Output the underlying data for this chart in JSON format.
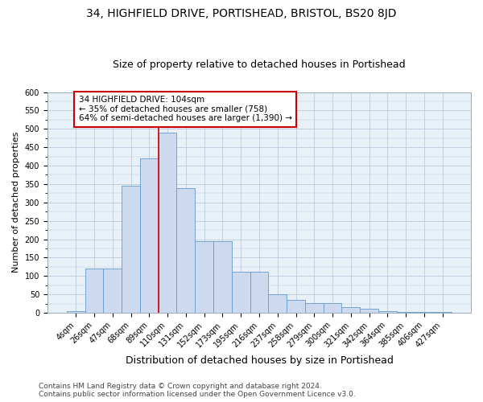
{
  "title": "34, HIGHFIELD DRIVE, PORTISHEAD, BRISTOL, BS20 8JD",
  "subtitle": "Size of property relative to detached houses in Portishead",
  "xlabel": "Distribution of detached houses by size in Portishead",
  "ylabel": "Number of detached properties",
  "categories": [
    "4sqm",
    "26sqm",
    "47sqm",
    "68sqm",
    "89sqm",
    "110sqm",
    "131sqm",
    "152sqm",
    "173sqm",
    "195sqm",
    "216sqm",
    "237sqm",
    "258sqm",
    "279sqm",
    "300sqm",
    "321sqm",
    "342sqm",
    "364sqm",
    "385sqm",
    "406sqm",
    "427sqm"
  ],
  "values": [
    5,
    120,
    120,
    345,
    420,
    490,
    338,
    195,
    195,
    112,
    112,
    50,
    35,
    26,
    26,
    15,
    10,
    5,
    3,
    3,
    3
  ],
  "bar_color": "#ccd9ee",
  "bar_edge_color": "#6699cc",
  "vline_x_index": 4.5,
  "annotation_text_line1": "34 HIGHFIELD DRIVE: 104sqm",
  "annotation_text_line2": "← 35% of detached houses are smaller (758)",
  "annotation_text_line3": "64% of semi-detached houses are larger (1,390) →",
  "annotation_box_facecolor": "#ffffff",
  "annotation_box_edgecolor": "#cc0000",
  "vline_color": "#cc0000",
  "grid_color": "#bbccdd",
  "bg_color": "#e8f0f8",
  "ylim": [
    0,
    600
  ],
  "yticks": [
    0,
    50,
    100,
    150,
    200,
    250,
    300,
    350,
    400,
    450,
    500,
    550,
    600
  ],
  "footer_line1": "Contains HM Land Registry data © Crown copyright and database right 2024.",
  "footer_line2": "Contains public sector information licensed under the Open Government Licence v3.0.",
  "title_fontsize": 10,
  "subtitle_fontsize": 9,
  "xlabel_fontsize": 9,
  "ylabel_fontsize": 8,
  "tick_fontsize": 7,
  "annotation_fontsize": 7.5,
  "footer_fontsize": 6.5
}
